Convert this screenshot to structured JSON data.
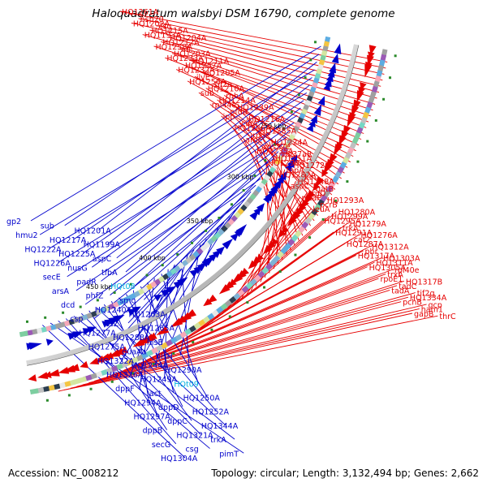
{
  "title": "Haloquadratum walsbyi DSM 16790, complete genome",
  "footer": {
    "accession": "Accession: NC_008212",
    "topology": "Topology: circular; Length: 3,132,494 bp; Genes: 2,662"
  },
  "colors": {
    "forward": "#e60000",
    "reverse": "#0000cc",
    "highlight": "#00b0e0",
    "backbone": "#808080"
  },
  "kbp_ticks": [
    "250 kbp",
    "300 kbp",
    "350 kbp",
    "400 kbp",
    "450 kbp"
  ],
  "forward_labels": [
    "HQ1261A",
    "hsp20",
    "csg",
    "HQ1202A",
    "HQ1215A",
    "HQ1204A",
    "HQ1193A",
    "HQ1212A",
    "nfi",
    "HQ1258A",
    "HQ1203A",
    "HQ1211A",
    "HQ1233A",
    "HQ1257A",
    "HQ1205A",
    "HQ1232A",
    "ilvE",
    "tif2a",
    "HQ1256A",
    "HQ1210A",
    "rnhA",
    "sub",
    "HQ1214A",
    "HQ1239A",
    "rpl44e",
    "pfdB",
    "HQ1216A",
    "ipp",
    "cinA",
    "HQ1285A",
    "HQ1246A",
    "rpoP",
    "HQ1224A",
    "aroE",
    "rps27e",
    "rpl37aR",
    "HQ1235A",
    "HQ1251A",
    "HQ1272A",
    "HQ1296A",
    "topA",
    "kin",
    "HQ1282A",
    "HQ1248A",
    "gatB",
    "aspC",
    "truD",
    "HQ1293A",
    "mtaP",
    "pcrB",
    "HQ1280A",
    "leuA",
    "HQ1299A",
    "HQ1279A",
    "HQ1295A",
    "trkA",
    "HQ1276A",
    "HQ1291A",
    "cat2",
    "HQ1312A",
    "HQ1287A",
    "phr",
    "HQ1303A",
    "HQ1317A",
    "HQ1311A",
    "rpl40e",
    "HQ1305A",
    "trxA",
    "HQ1317B",
    "rpoE1",
    "tadC",
    "tif2g",
    "tadA",
    "HQ1334A",
    "gcp",
    "pchB",
    "ham1",
    "thrC",
    "gapB"
  ],
  "reverse_labels": [
    "gp2",
    "sub",
    "HQ1201A",
    "hmu2",
    "HQ1217A",
    "HQ1199A",
    "HQ1222A",
    "HQ1225A",
    "aspC",
    "HQ1226A",
    "nusG",
    "tfbA",
    "secE",
    "padR",
    "HQt08",
    "arsA",
    "phfZ",
    "smc",
    "dcd",
    "HQ1240A",
    "HQ1263A",
    "csp",
    "ftsZ",
    "HQ1265A",
    "HQ1277A",
    "HQ1288A",
    "hisE",
    "HQ1275A",
    "guaAa",
    "hisH",
    "HQ1322A",
    "HQ1244A",
    "HQ1290A",
    "HQ1326A",
    "HQ1249A",
    "HQt09",
    "dppF",
    "act",
    "HQ1250A",
    "HQ1294A",
    "dppD",
    "HQ1252A",
    "HQ1297A",
    "dppC",
    "HQ1344A",
    "dppB",
    "HQ1321A",
    "trkA",
    "secG",
    "csg",
    "pimT",
    "HQ1304A"
  ]
}
